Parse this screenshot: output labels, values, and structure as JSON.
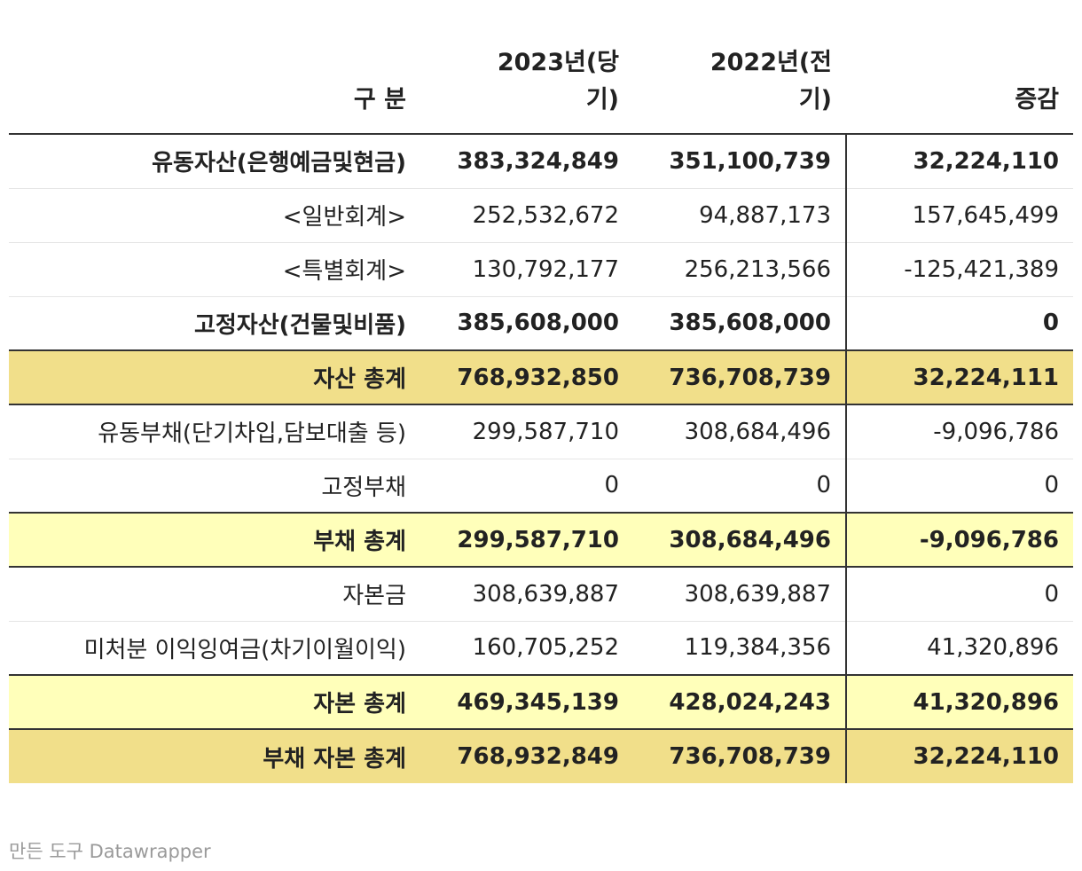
{
  "chart_data": {
    "type": "table",
    "columns": [
      "구 분",
      "2023년(당기)",
      "2022년(전기)",
      "증감"
    ],
    "rows": [
      {
        "label": "유동자산(은행예금및현금)",
        "v2023": "383,324,849",
        "v2022": "351,100,739",
        "change": "32,224,110",
        "style": "bold"
      },
      {
        "label": "<일반회계>",
        "v2023": "252,532,672",
        "v2022": "94,887,173",
        "change": "157,645,499",
        "style": "normal"
      },
      {
        "label": "<특별회계>",
        "v2023": "130,792,177",
        "v2022": "256,213,566",
        "change": "-125,421,389",
        "style": "normal"
      },
      {
        "label": "고정자산(건물및비품)",
        "v2023": "385,608,000",
        "v2022": "385,608,000",
        "change": "0",
        "style": "bold"
      },
      {
        "label": "자산 총계",
        "v2023": "768,932,850",
        "v2022": "736,708,739",
        "change": "32,224,111",
        "style": "total-dark"
      },
      {
        "label": "유동부채(단기차입,담보대출 등)",
        "v2023": "299,587,710",
        "v2022": "308,684,496",
        "change": "-9,096,786",
        "style": "normal"
      },
      {
        "label": "고정부채",
        "v2023": "0",
        "v2022": "0",
        "change": "0",
        "style": "normal"
      },
      {
        "label": "부채 총계",
        "v2023": "299,587,710",
        "v2022": "308,684,496",
        "change": "-9,096,786",
        "style": "total-light"
      },
      {
        "label": "자본금",
        "v2023": "308,639,887",
        "v2022": "308,639,887",
        "change": "0",
        "style": "normal"
      },
      {
        "label": "미처분 이익잉여금(차기이월이익)",
        "v2023": "160,705,252",
        "v2022": "119,384,356",
        "change": "41,320,896",
        "style": "normal"
      },
      {
        "label": "자본 총계",
        "v2023": "469,345,139",
        "v2022": "428,024,243",
        "change": "41,320,896",
        "style": "total-light"
      },
      {
        "label": "부채 자본 총계",
        "v2023": "768,932,849",
        "v2022": "736,708,739",
        "change": "32,224,110",
        "style": "total-dark"
      }
    ]
  },
  "colors": {
    "total_dark": "#f1df8a",
    "total_light": "#ffffba",
    "rule": "#333333",
    "footer_text": "#9a9a9a"
  },
  "footer": {
    "credit": "만든 도구 Datawrapper"
  }
}
